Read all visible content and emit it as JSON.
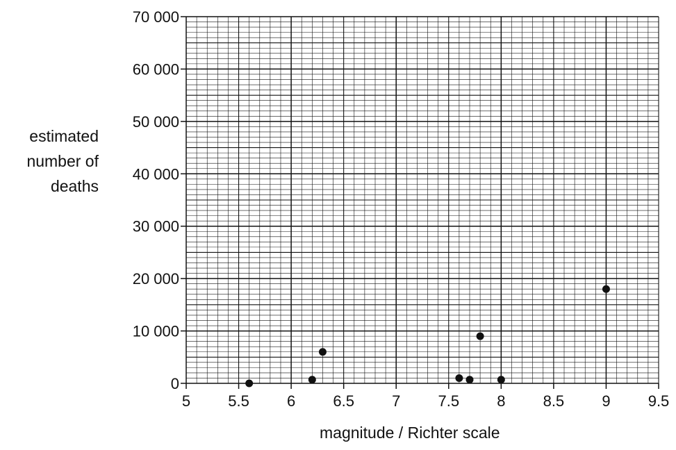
{
  "chart_data": {
    "type": "scatter",
    "title": "",
    "xlabel": "magnitude / Richter scale",
    "ylabel_lines": [
      "estimated",
      "number of",
      "deaths"
    ],
    "xlim": [
      5,
      9.5
    ],
    "ylim": [
      0,
      70000
    ],
    "x_ticks": [
      5,
      5.5,
      6,
      6.5,
      7,
      7.5,
      8,
      8.5,
      9,
      9.5
    ],
    "x_tick_labels": [
      "5",
      "5.5",
      "6",
      "6.5",
      "7",
      "7.5",
      "8",
      "8.5",
      "9",
      "9.5"
    ],
    "y_ticks": [
      0,
      10000,
      20000,
      30000,
      40000,
      50000,
      60000,
      70000
    ],
    "y_tick_labels": [
      "0",
      "10 000",
      "20 000",
      "30 000",
      "40 000",
      "50 000",
      "60 000",
      "70 000"
    ],
    "grid": true,
    "points": [
      {
        "x": 5.6,
        "y": 0
      },
      {
        "x": 6.2,
        "y": 700
      },
      {
        "x": 6.3,
        "y": 6000
      },
      {
        "x": 7.6,
        "y": 1000
      },
      {
        "x": 7.7,
        "y": 700
      },
      {
        "x": 7.8,
        "y": 9000
      },
      {
        "x": 8.0,
        "y": 700
      },
      {
        "x": 9.0,
        "y": 18000
      }
    ],
    "point_color": "#111111",
    "grid_color": "#111111"
  }
}
